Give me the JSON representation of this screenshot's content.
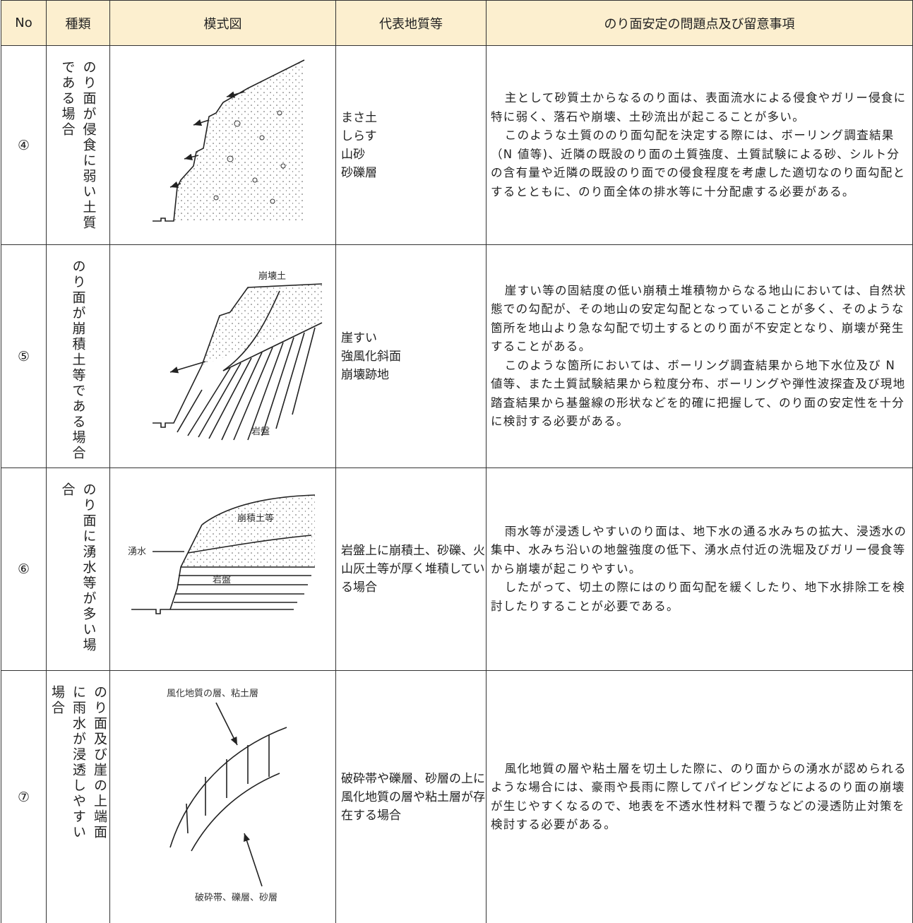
{
  "table": {
    "headers": [
      "No",
      "種類",
      "模式図",
      "代表地質等",
      "のり面安定の問題点及び留意事項"
    ],
    "rows": [
      {
        "no": "④",
        "kind": "のり面が侵食に弱い土質である場合",
        "diagram_labels": [],
        "geology": [
          "まさ土",
          "しらす",
          "山砂",
          "砂礫層"
        ],
        "notes": [
          "主として砂質土からなるのり面は、表面流水による侵食やガリー侵食に特に弱く、落石や崩壊、土砂流出が起こることが多い。",
          "このような土質ののり面勾配を決定する際には、ボーリング調査結果（N 値等)、近隣の既設のり面の土質強度、土質試験による砂、シルト分の含有量や近隣の既設のり面での侵食程度を考慮した適切なのり面勾配とするとともに、のり面全体の排水等に十分配慮する必要がある。"
        ]
      },
      {
        "no": "⑤",
        "kind": "のり面が崩積土等である場合",
        "diagram_labels": [
          "崩壊土",
          "岩盤"
        ],
        "geology": [
          "崖すい",
          "強風化斜面",
          "崩壊跡地"
        ],
        "notes": [
          "崖すい等の固結度の低い崩積土堆積物からなる地山においては、自然状態での勾配が、その地山の安定勾配となっていることが多く、そのような箇所を地山より急な勾配で切土するとのり面が不安定となり、崩壊が発生することがある。",
          "このような箇所においては、ボーリング調査結果から地下水位及び N 値等、また土質試験結果から粒度分布、ボーリングや弾性波探査及び現地踏査結果から基盤線の形状などを的確に把握して、のり面の安定性を十分に検討する必要がある。"
        ]
      },
      {
        "no": "⑥",
        "kind": "のり面に湧水等が多い場合",
        "diagram_labels": [
          "崩積土等",
          "湧水",
          "岩盤"
        ],
        "geology": [
          "岩盤上に崩積土、砂礫、火山灰土等が厚く堆積している場合"
        ],
        "notes": [
          "雨水等が浸透しやすいのり面は、地下水の通る水みちの拡大、浸透水の集中、水みち沿いの地盤強度の低下、湧水点付近の洗堀及びガリー侵食等から崩壊が起こりやすい。",
          "したがって、切土の際にはのり面勾配を緩くしたり、地下水排除工を検討したりすることが必要である。"
        ]
      },
      {
        "no": "⑦",
        "kind": "のり面及び崖の上端面に雨水が浸透しやすい場合",
        "diagram_labels": [
          "風化地質の層、粘土層",
          "破砕帯、礫層、砂層"
        ],
        "geology": [
          "破砕帯や礫層、砂層の上に風化地質の層や粘土層が存在する場合"
        ],
        "notes": [
          "風化地質の層や粘土層を切土した際に、のり面からの湧水が認められるような場合には、豪雨や長雨に際してパイピングなどによるのり面の崩壊が生じやすくなるので、地表を不透水性材料で覆うなどの浸透防止対策を検討する必要がある。"
        ]
      }
    ]
  }
}
